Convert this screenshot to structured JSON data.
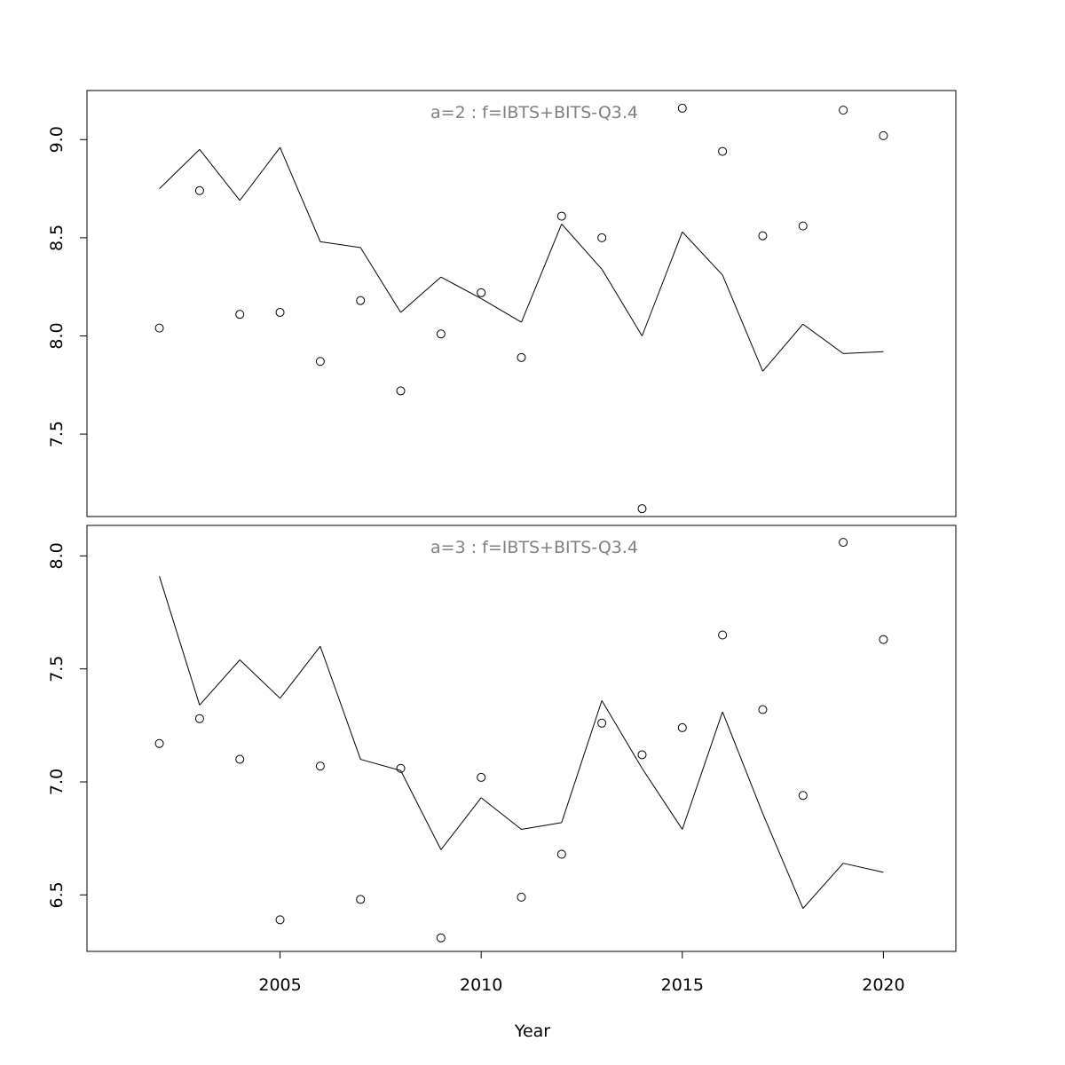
{
  "xlabel": "Year",
  "x_ticks": [
    2005,
    2010,
    2015,
    2020
  ],
  "chart_data": [
    {
      "type": "scatter",
      "title": "a=2  :  f=IBTS+BITS-Q3.4",
      "xlabel": "Year",
      "ylabel": "",
      "xlim": [
        2000.2,
        2021.8
      ],
      "ylim": [
        7.08,
        9.25
      ],
      "y_ticks": [
        "7.5",
        "8.0",
        "8.5",
        "9.0"
      ],
      "grid": false,
      "series": [
        {
          "type": "scatter",
          "marker": "open-circle",
          "x": [
            2002,
            2003,
            2004,
            2005,
            2006,
            2007,
            2008,
            2009,
            2010,
            2011,
            2012,
            2013,
            2014,
            2015,
            2016,
            2017,
            2018,
            2019,
            2020
          ],
          "y": [
            8.04,
            8.74,
            8.11,
            8.12,
            7.87,
            8.18,
            7.72,
            8.01,
            8.22,
            7.89,
            8.61,
            8.5,
            7.12,
            9.16,
            8.94,
            8.51,
            8.56,
            9.15,
            9.02
          ]
        },
        {
          "type": "line",
          "x": [
            2002,
            2003,
            2004,
            2005,
            2006,
            2007,
            2008,
            2009,
            2010,
            2011,
            2012,
            2013,
            2014,
            2015,
            2016,
            2017,
            2018,
            2019,
            2020
          ],
          "y": [
            8.75,
            8.95,
            8.69,
            8.96,
            8.48,
            8.45,
            8.12,
            8.3,
            8.19,
            8.07,
            8.57,
            8.34,
            8.0,
            8.53,
            8.31,
            7.82,
            8.06,
            7.91,
            7.92
          ]
        }
      ]
    },
    {
      "type": "scatter",
      "title": "a=3  :  f=IBTS+BITS-Q3.4",
      "xlabel": "Year",
      "ylabel": "",
      "xlim": [
        2000.2,
        2021.8
      ],
      "ylim": [
        6.25,
        8.135
      ],
      "y_ticks": [
        "6.5",
        "7.0",
        "7.5",
        "8.0"
      ],
      "grid": false,
      "series": [
        {
          "type": "scatter",
          "marker": "open-circle",
          "x": [
            2002,
            2003,
            2004,
            2005,
            2006,
            2007,
            2008,
            2009,
            2010,
            2011,
            2012,
            2013,
            2014,
            2015,
            2016,
            2017,
            2018,
            2019,
            2020
          ],
          "y": [
            7.17,
            7.28,
            7.1,
            6.39,
            7.07,
            6.48,
            7.06,
            6.31,
            7.02,
            6.49,
            6.68,
            7.26,
            7.12,
            7.24,
            7.65,
            7.32,
            6.94,
            8.06,
            7.63
          ]
        },
        {
          "type": "line",
          "x": [
            2002,
            2003,
            2004,
            2005,
            2006,
            2007,
            2008,
            2009,
            2010,
            2011,
            2012,
            2013,
            2014,
            2015,
            2016,
            2017,
            2018,
            2019,
            2020
          ],
          "y": [
            7.91,
            7.34,
            7.54,
            7.37,
            7.6,
            7.1,
            7.05,
            6.7,
            6.93,
            6.79,
            6.82,
            7.36,
            7.06,
            6.79,
            7.31,
            6.86,
            6.44,
            6.64,
            6.6
          ]
        }
      ]
    }
  ]
}
